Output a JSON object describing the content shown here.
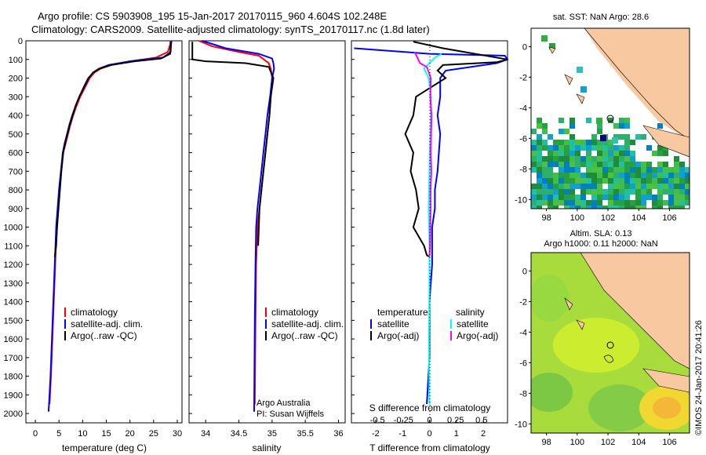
{
  "header": {
    "line1": "Argo profile: CS 5903908_195 15-Jan-2017 20170115_960 4.604S 102.248E",
    "line2": "Climatology: CARS2009. Satellite-adjusted climatology: synTS_20170117.nc (1.8d later)"
  },
  "stamp": "©IMOS 24-Jan-2017 20:41:26",
  "depth_ticks": [
    "0",
    "100",
    "200",
    "300",
    "400",
    "500",
    "600",
    "700",
    "800",
    "900",
    "1000",
    "1100",
    "1200",
    "1300",
    "1400",
    "1500",
    "1600",
    "1700",
    "1800",
    "1900",
    "2000"
  ],
  "legend_profiles": {
    "climatology": "climatology",
    "satellite": "satellite-adj. clim.",
    "argo": "Argo(..raw -QC)"
  },
  "legend_diff": {
    "temperature": "temperature",
    "salinity": "salinity",
    "t_sat": "satellite",
    "t_argo": "Argo(-adj)",
    "s_sat": "satellite",
    "s_argo": "Argo(-adj)"
  },
  "credits": {
    "line1": "Argo Australia",
    "line2": "PI: Susan Wijffels"
  },
  "map_top": {
    "label": "sat. SST: NaN Argo: 28.6",
    "xticks": [
      "98",
      "100",
      "102",
      "104",
      "106"
    ],
    "yticks": [
      "0",
      "-2",
      "-4",
      "-6",
      "-8",
      "-10"
    ]
  },
  "map_bottom": {
    "label1": "Altim. SLA: 0.13",
    "label2": "Argo h1000: 0.11 h2000: NaN",
    "xticks": [
      "98",
      "100",
      "102",
      "104",
      "106"
    ],
    "yticks": [
      "0",
      "-2",
      "-4",
      "-6",
      "-8",
      "-10"
    ]
  },
  "colors": {
    "climatology": "#ff0000",
    "satellite": "#0000ff",
    "argo": "#000000",
    "sal_satellite": "#00ffff",
    "sal_argo": "#ff00ff",
    "land": "#f8c8a0"
  },
  "chart_data": [
    {
      "type": "line",
      "xlabel": "temperature (deg C)",
      "ylabel": "",
      "xlim": [
        -2,
        31
      ],
      "ylim": [
        2050,
        0
      ],
      "xticks": [
        "0",
        "5",
        "10",
        "15",
        "20",
        "25",
        "30"
      ],
      "series": [
        {
          "name": "climatology",
          "x": [
            28.6,
            28.5,
            28.0,
            25.5,
            20.0,
            16.0,
            13.8,
            12.5,
            11.5,
            10.5,
            9.5,
            8.7,
            8.0,
            7.4,
            6.9,
            6.4,
            5.9,
            5.5,
            5.1,
            4.8,
            4.5,
            4.2,
            3.9,
            3.6,
            3.3,
            3.0
          ],
          "y": [
            0,
            20,
            60,
            90,
            110,
            130,
            150,
            170,
            200,
            250,
            300,
            350,
            400,
            450,
            500,
            550,
            600,
            700,
            800,
            900,
            1000,
            1200,
            1400,
            1600,
            1800,
            1950
          ]
        },
        {
          "name": "satellite-adj. clim.",
          "x": [
            28.8,
            28.7,
            28.6,
            27.0,
            20.0,
            15.5,
            13.4,
            12.2,
            11.3,
            10.3,
            9.3,
            8.5,
            7.8,
            7.2,
            6.7,
            6.2,
            5.8,
            5.4,
            5.0,
            4.7,
            4.4,
            4.1,
            3.8,
            3.5,
            3.2,
            2.9,
            2.8
          ],
          "y": [
            0,
            20,
            60,
            90,
            110,
            130,
            150,
            170,
            200,
            250,
            300,
            350,
            400,
            450,
            500,
            550,
            600,
            700,
            800,
            900,
            1000,
            1200,
            1400,
            1600,
            1800,
            1950,
            1990
          ]
        },
        {
          "name": "Argo(..raw -QC)",
          "x": [
            28.6,
            28.6,
            28.5,
            26.5,
            21.0,
            16.0,
            13.5,
            12.3,
            11.2,
            10.2,
            9.3,
            8.5,
            7.9,
            7.3,
            6.8,
            6.3,
            5.9,
            5.5,
            5.2,
            4.9,
            4.6,
            4.4,
            4.1
          ],
          "y": [
            5,
            30,
            70,
            95,
            110,
            130,
            150,
            170,
            200,
            250,
            300,
            350,
            400,
            450,
            500,
            550,
            600,
            700,
            800,
            900,
            1000,
            1100,
            1160
          ]
        }
      ]
    },
    {
      "type": "line",
      "xlabel": "salinity",
      "ylabel": "",
      "xlim": [
        33.75,
        36.1
      ],
      "ylim": [
        2050,
        0
      ],
      "xticks": [
        "34",
        "34.5",
        "35",
        "35.5",
        "36"
      ],
      "series": [
        {
          "name": "climatology",
          "x": [
            33.9,
            34.1,
            34.5,
            34.8,
            34.95,
            34.98,
            35.0,
            34.98,
            34.96,
            34.93,
            34.9,
            34.87,
            34.84,
            34.81,
            34.78,
            34.76,
            34.75,
            34.74
          ],
          "y": [
            0,
            30,
            60,
            80,
            120,
            150,
            200,
            300,
            400,
            500,
            600,
            700,
            800,
            900,
            1000,
            1200,
            1500,
            1950
          ]
        },
        {
          "name": "satellite-adj. clim.",
          "x": [
            33.95,
            34.3,
            34.8,
            35.0,
            35.02,
            35.03,
            35.0,
            34.97,
            34.93,
            34.9,
            34.87,
            34.84,
            34.81,
            34.78,
            34.76,
            34.75,
            34.74,
            34.73
          ],
          "y": [
            0,
            40,
            70,
            95,
            120,
            150,
            200,
            300,
            400,
            500,
            600,
            700,
            800,
            900,
            1000,
            1200,
            1500,
            1990
          ]
        },
        {
          "name": "Argo(..raw -QC)",
          "x": [
            33.8,
            33.8,
            33.8,
            34.0,
            34.6,
            34.95,
            35.02,
            34.98,
            34.96,
            34.93,
            34.9,
            34.87,
            34.84,
            34.81,
            34.79
          ],
          "y": [
            5,
            60,
            100,
            110,
            120,
            140,
            200,
            300,
            400,
            500,
            600,
            700,
            800,
            900,
            1100
          ]
        }
      ]
    },
    {
      "type": "line",
      "xlabel": "T difference from climatology",
      "title": "S difference from climatology",
      "xlim": [
        -2.9,
        2.9
      ],
      "ylim": [
        2050,
        0
      ],
      "xticks": [
        "-2",
        "-1",
        "0",
        "1",
        "2"
      ],
      "s_xticks": [
        "-0.5",
        "-0.25",
        "0",
        "0.25",
        "0.5"
      ],
      "series": [
        {
          "name": "satellite",
          "x": [
            -2.8,
            0,
            2.8,
            2.9,
            2.5,
            0.6,
            0.4,
            0.4,
            0.3,
            0.4,
            0.35,
            0.3,
            0.2,
            0.2,
            0.1,
            0.1,
            0.0,
            0.0,
            -0.1
          ],
          "y": [
            40,
            70,
            80,
            100,
            120,
            160,
            200,
            300,
            400,
            500,
            600,
            700,
            800,
            900,
            1000,
            1200,
            1400,
            1700,
            1950
          ]
        },
        {
          "name": "Argo(-adj)",
          "x": [
            -0.6,
            0.5,
            2.9,
            2.5,
            0.5,
            0.3,
            0.6,
            -0.5,
            -0.6,
            -0.9,
            -0.6,
            -0.7,
            -0.5,
            -0.4,
            -0.6,
            -0.2,
            -0.1,
            0.0
          ],
          "y": [
            5,
            40,
            100,
            115,
            130,
            160,
            200,
            300,
            400,
            500,
            600,
            700,
            800,
            900,
            1000,
            1100,
            1150,
            1160
          ]
        },
        {
          "name": "satellite",
          "x": [
            0.45,
            0.2,
            0.0,
            -0.2,
            -0.03,
            0.06,
            0.03,
            0.0,
            -0.03,
            0.0,
            0.0,
            -0.02,
            0.0
          ],
          "y": [
            70,
            90,
            120,
            150,
            200,
            300,
            500,
            700,
            900,
            1100,
            1300,
            1600,
            1950
          ]
        },
        {
          "name": "Argo(-adj)",
          "x": [
            -0.55,
            -0.35,
            -0.1,
            0.05,
            0.03,
            0.08,
            0.06,
            0.05,
            0.07,
            0.04,
            0.04,
            0.02,
            0.0
          ],
          "y": [
            60,
            120,
            140,
            200,
            300,
            400,
            500,
            600,
            700,
            800,
            900,
            1100,
            1160
          ]
        }
      ]
    }
  ]
}
